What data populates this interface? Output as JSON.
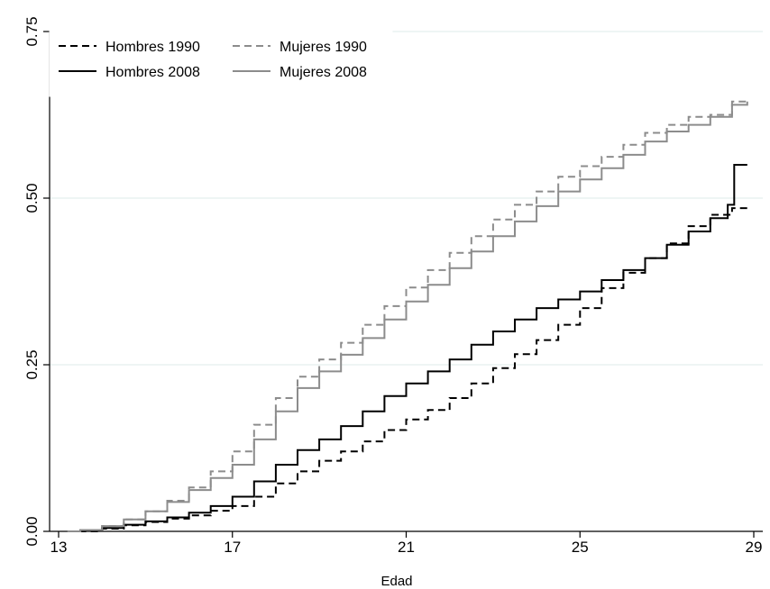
{
  "chart_data": {
    "type": "line",
    "xlabel": "Edad",
    "ylabel": "",
    "xlim": [
      13,
      29
    ],
    "ylim": [
      0,
      0.75
    ],
    "x_ticks": [
      13,
      17,
      21,
      25,
      29
    ],
    "y_ticks": [
      0,
      0.25,
      0.5,
      0.75
    ],
    "y_tick_labels": [
      "0.00",
      "0.25",
      "0.50",
      "0.75"
    ],
    "grid": "horizontal",
    "legend_position": "top-left",
    "series": [
      {
        "name": "Hombres 1990",
        "color": "#000000",
        "dash": "dashed",
        "x": [
          13.2,
          13.5,
          14.0,
          14.5,
          15.0,
          15.5,
          16.0,
          16.5,
          17.0,
          17.5,
          18.0,
          18.5,
          19.0,
          19.5,
          20.0,
          20.5,
          21.0,
          21.5,
          22.0,
          22.5,
          23.0,
          23.5,
          24.0,
          24.5,
          25.0,
          25.5,
          26.0,
          26.5,
          27.0,
          27.5,
          28.0,
          28.5,
          28.85
        ],
        "values": [
          0.0,
          0.0,
          0.004,
          0.009,
          0.014,
          0.019,
          0.024,
          0.031,
          0.038,
          0.052,
          0.072,
          0.09,
          0.106,
          0.12,
          0.135,
          0.152,
          0.168,
          0.182,
          0.2,
          0.222,
          0.245,
          0.266,
          0.287,
          0.31,
          0.335,
          0.365,
          0.388,
          0.41,
          0.432,
          0.458,
          0.475,
          0.485,
          0.485
        ]
      },
      {
        "name": "Mujeres 1990",
        "color": "#8c8c8c",
        "dash": "dashed",
        "x": [
          13.2,
          13.5,
          14.0,
          14.5,
          15.0,
          15.5,
          16.0,
          16.5,
          17.0,
          17.5,
          18.0,
          18.5,
          19.0,
          19.5,
          20.0,
          20.5,
          21.0,
          21.5,
          22.0,
          22.5,
          23.0,
          23.5,
          24.0,
          24.5,
          25.0,
          25.5,
          26.0,
          26.5,
          27.0,
          27.5,
          28.0,
          28.5,
          28.85
        ],
        "values": [
          0.0,
          0.002,
          0.008,
          0.018,
          0.03,
          0.046,
          0.066,
          0.09,
          0.12,
          0.16,
          0.2,
          0.232,
          0.258,
          0.283,
          0.31,
          0.338,
          0.366,
          0.392,
          0.418,
          0.443,
          0.468,
          0.49,
          0.51,
          0.532,
          0.548,
          0.562,
          0.58,
          0.598,
          0.61,
          0.622,
          0.625,
          0.645,
          0.645
        ]
      },
      {
        "name": "Hombres 2008",
        "color": "#000000",
        "dash": "solid",
        "x": [
          13.2,
          13.5,
          14.0,
          14.5,
          15.0,
          15.5,
          16.0,
          16.5,
          17.0,
          17.5,
          18.0,
          18.5,
          19.0,
          19.5,
          20.0,
          20.5,
          21.0,
          21.5,
          22.0,
          22.5,
          23.0,
          23.5,
          24.0,
          24.5,
          25.0,
          25.5,
          26.0,
          26.5,
          27.0,
          27.5,
          28.0,
          28.4,
          28.55,
          28.85
        ],
        "values": [
          0.0,
          0.001,
          0.005,
          0.01,
          0.015,
          0.021,
          0.028,
          0.038,
          0.052,
          0.075,
          0.1,
          0.122,
          0.138,
          0.158,
          0.18,
          0.203,
          0.222,
          0.24,
          0.258,
          0.28,
          0.3,
          0.318,
          0.335,
          0.348,
          0.36,
          0.377,
          0.392,
          0.41,
          0.43,
          0.45,
          0.47,
          0.49,
          0.55,
          0.55
        ]
      },
      {
        "name": "Mujeres 2008",
        "color": "#8c8c8c",
        "dash": "solid",
        "x": [
          13.2,
          13.5,
          14.0,
          14.5,
          15.0,
          15.5,
          16.0,
          16.5,
          17.0,
          17.5,
          18.0,
          18.5,
          19.0,
          19.5,
          20.0,
          20.5,
          21.0,
          21.5,
          22.0,
          22.5,
          23.0,
          23.5,
          24.0,
          24.5,
          25.0,
          25.5,
          26.0,
          26.5,
          27.0,
          27.5,
          28.0,
          28.5,
          28.85
        ],
        "values": [
          0.0,
          0.002,
          0.008,
          0.018,
          0.03,
          0.044,
          0.062,
          0.08,
          0.1,
          0.138,
          0.18,
          0.215,
          0.24,
          0.265,
          0.29,
          0.318,
          0.345,
          0.37,
          0.395,
          0.42,
          0.443,
          0.465,
          0.488,
          0.51,
          0.528,
          0.545,
          0.565,
          0.585,
          0.6,
          0.61,
          0.622,
          0.64,
          0.645
        ]
      }
    ]
  }
}
